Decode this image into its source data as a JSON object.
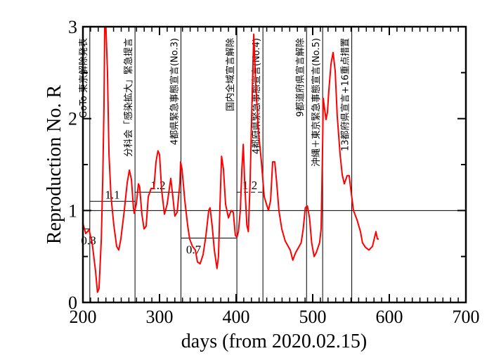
{
  "chart_data": {
    "type": "line",
    "title": "",
    "xlabel": "days   (from 2020.02.15)",
    "ylabel": "Reproduction No.  R",
    "xlim": [
      200,
      700
    ],
    "ylim": [
      0,
      3
    ],
    "xticks": [
      200,
      300,
      400,
      500,
      600,
      700
    ],
    "yticks": [
      0,
      1,
      2,
      3
    ],
    "xtick_labels": [
      "200",
      "300",
      "400",
      "500",
      "600",
      "700"
    ],
    "ytick_labels": [
      "0",
      "1",
      "2",
      "3"
    ],
    "grid": false,
    "reference_line": 1,
    "line_color": "#ff0000",
    "series": [
      {
        "name": "R",
        "x": [
          200,
          203.7,
          208,
          212,
          216.5,
          219,
          221,
          224,
          226,
          227.5,
          228.4,
          230,
          232,
          234,
          236.7,
          240.4,
          244,
          246.8,
          249.5,
          254,
          257.8,
          260.6,
          263.3,
          266,
          267,
          269.7,
          272.5,
          274,
          277,
          279.8,
          282.6,
          285.3,
          289,
          292.7,
          295.4,
          298,
          300,
          302.8,
          306.4,
          310,
          314.7,
          317.4,
          320,
          323,
          326.6,
          327.5,
          329.4,
          333,
          336.7,
          339.4,
          343,
          346.8,
          349.5,
          353,
          356.9,
          360.6,
          364.2,
          366,
          368.8,
          371.6,
          375,
          377,
          379,
          381,
          383.5,
          386.2,
          390,
          393.6,
          396.3,
          399,
          401,
          403,
          405.5,
          407.5,
          409.4,
          411.2,
          414,
          416,
          418.3,
          420.2,
          423,
          425.7,
          429.4,
          433,
          436.7,
          442.2,
          445,
          447.7,
          450.5,
          453,
          455.9,
          459.6,
          464,
          470.6,
          474,
          477.6,
          485,
          487.6,
          490.4,
          493,
          495.9,
          498.6,
          501.8,
          504.6,
          509,
          511,
          513,
          513.8,
          515.6,
          517.4,
          519.3,
          521,
          523.9,
          526.6,
          529.4,
          532,
          535.8,
          538.5,
          541.3,
          545,
          547.6,
          550.4,
          553.2,
          557.8,
          562.4,
          565,
          568.8,
          573.4,
          578,
          582.6,
          584.4,
          586.3
        ],
        "y": [
          0.86,
          0.75,
          0.79,
          0.65,
          0.34,
          0.11,
          0.15,
          0.69,
          1.38,
          2.14,
          3.0,
          3.0,
          2.52,
          1.61,
          1.15,
          0.84,
          0.61,
          0.57,
          0.69,
          1.0,
          1.3,
          1.44,
          1.34,
          1.03,
          0.97,
          1.07,
          1.29,
          1.26,
          0.96,
          0.8,
          0.83,
          1.15,
          1.24,
          1.24,
          1.53,
          1.65,
          1.61,
          1.22,
          0.96,
          1.07,
          1.35,
          1.15,
          0.94,
          0.98,
          1.3,
          1.53,
          1.45,
          1.11,
          0.84,
          0.69,
          0.61,
          0.57,
          0.44,
          0.42,
          0.52,
          0.73,
          1.0,
          1.03,
          0.83,
          0.57,
          0.37,
          0.5,
          1.07,
          1.59,
          1.45,
          1.07,
          0.92,
          1.0,
          0.98,
          0.73,
          0.71,
          0.77,
          1.0,
          1.45,
          1.72,
          1.3,
          0.84,
          0.77,
          1.3,
          1.99,
          2.92,
          2.37,
          1.84,
          1.53,
          1.15,
          1.0,
          1.11,
          1.53,
          1.53,
          1.3,
          1.0,
          0.8,
          0.67,
          0.57,
          0.46,
          0.54,
          0.65,
          0.8,
          1.03,
          1.05,
          0.92,
          0.65,
          0.5,
          0.54,
          0.65,
          0.8,
          1.76,
          2.22,
          2.1,
          1.99,
          2.07,
          2.3,
          2.6,
          2.72,
          2.52,
          2.03,
          1.61,
          1.39,
          1.29,
          1.38,
          1.38,
          1.19,
          1.0,
          0.9,
          0.77,
          0.65,
          0.6,
          0.57,
          0.61,
          0.77,
          0.69,
          0.69
        ]
      }
    ],
    "events": [
      {
        "day": 209,
        "label": "GoTo 東京解除発表"
      },
      {
        "day": 268,
        "label": "分科会「感染拡大」緊急提言"
      },
      {
        "day": 328,
        "label": "4都県緊急事態宣言(No.3)"
      },
      {
        "day": 401,
        "label": "国内全域宣言解除"
      },
      {
        "day": 435,
        "label": "4都府県緊急事態宣言(No.4)"
      },
      {
        "day": 492,
        "label": "9都道府県宣言解除"
      },
      {
        "day": 513,
        "label": "沖縄＋東京緊急事態宣言(No.5)"
      },
      {
        "day": 551,
        "label": "13都府県宣言+16重点措置"
      }
    ],
    "levels": [
      {
        "from": 200,
        "to": 209,
        "value": 0.8,
        "label": "0.8",
        "dashed": false
      },
      {
        "from": 209,
        "to": 268,
        "value": 1.1,
        "label": "1.1",
        "dashed": false
      },
      {
        "from": 268,
        "to": 328,
        "value": 1.2,
        "label": "1.2",
        "dashed": false
      },
      {
        "from": 328,
        "to": 401,
        "value": 0.7,
        "label": "0.7",
        "dashed": false
      },
      {
        "from": 401,
        "to": 435,
        "value": 1.2,
        "label": "1.2",
        "dashed": true
      }
    ]
  }
}
